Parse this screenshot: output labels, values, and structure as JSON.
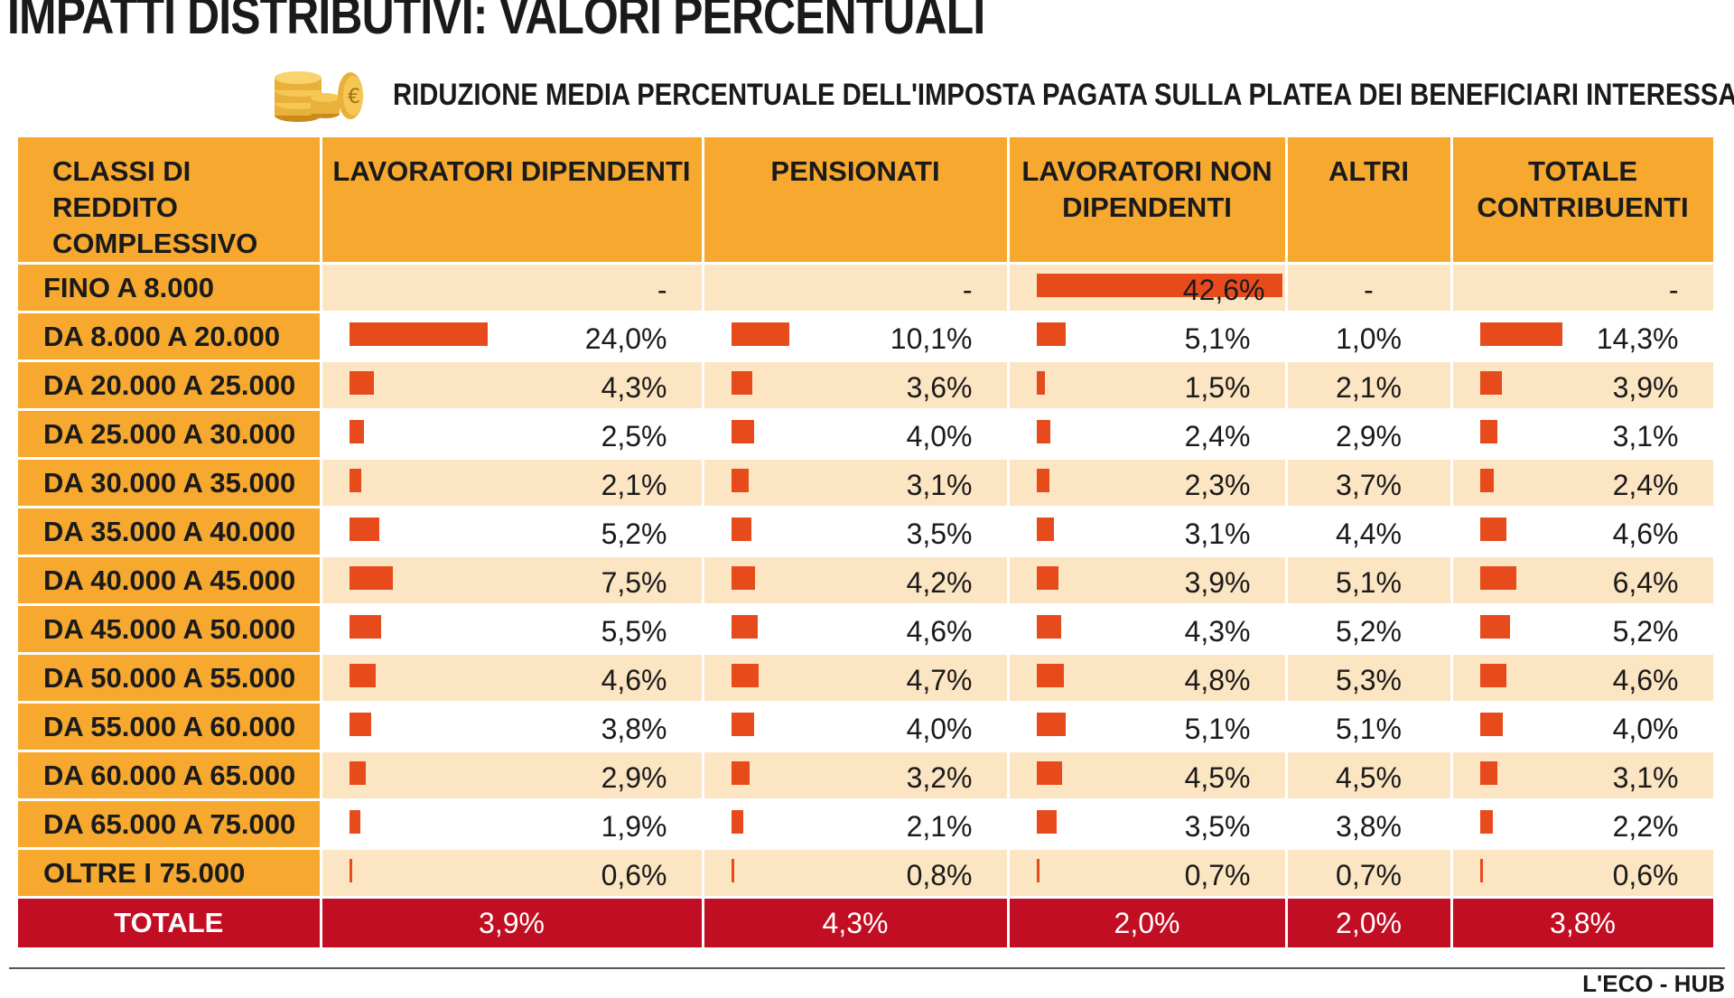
{
  "header": {
    "title": "IMPATTI DISTRIBUTIVI: VALORI PERCENTUALI",
    "subtitle": "RIDUZIONE MEDIA PERCENTUALE DELL'IMPOSTA PAGATA SULLA PLATEA DEI BENEFICIARI INTERESSATA",
    "coins_icon": "coin-stack-icon",
    "source": "L'ECO - HUB"
  },
  "colors": {
    "header_bg": "#f6a82f",
    "row_odd": "#fbe5c2",
    "row_even": "#ffffff",
    "bar": "#e84b1b",
    "total_bg": "#c20e23"
  },
  "chart_data": {
    "type": "table",
    "columns": [
      "CLASSI DI REDDITO COMPLESSIVO",
      "LAVORATORI DIPENDENTI",
      "PENSIONATI",
      "LAVORATORI NON DIPENDENTI",
      "ALTRI",
      "TOTALE CONTRIBUENTI"
    ],
    "rows": [
      {
        "label": "FINO A 8.000",
        "values": [
          "-",
          "-",
          "42,6%",
          "-",
          "-"
        ],
        "numbers": [
          null,
          null,
          42.6,
          null,
          null
        ]
      },
      {
        "label": "DA 8.000 A 20.000",
        "values": [
          "24,0%",
          "10,1%",
          "5,1%",
          "1,0%",
          "14,3%"
        ],
        "numbers": [
          24.0,
          10.1,
          5.1,
          1.0,
          14.3
        ]
      },
      {
        "label": "DA 20.000 A 25.000",
        "values": [
          "4,3%",
          "3,6%",
          "1,5%",
          "2,1%",
          "3,9%"
        ],
        "numbers": [
          4.3,
          3.6,
          1.5,
          2.1,
          3.9
        ]
      },
      {
        "label": "DA 25.000 A 30.000",
        "values": [
          "2,5%",
          "4,0%",
          "2,4%",
          "2,9%",
          "3,1%"
        ],
        "numbers": [
          2.5,
          4.0,
          2.4,
          2.9,
          3.1
        ]
      },
      {
        "label": "DA 30.000 A 35.000",
        "values": [
          "2,1%",
          "3,1%",
          "2,3%",
          "3,7%",
          "2,4%"
        ],
        "numbers": [
          2.1,
          3.1,
          2.3,
          3.7,
          2.4
        ]
      },
      {
        "label": "DA 35.000 A 40.000",
        "values": [
          "5,2%",
          "3,5%",
          "3,1%",
          "4,4%",
          "4,6%"
        ],
        "numbers": [
          5.2,
          3.5,
          3.1,
          4.4,
          4.6
        ]
      },
      {
        "label": "DA 40.000 A 45.000",
        "values": [
          "7,5%",
          "4,2%",
          "3,9%",
          "5,1%",
          "6,4%"
        ],
        "numbers": [
          7.5,
          4.2,
          3.9,
          5.1,
          6.4
        ]
      },
      {
        "label": "DA 45.000 A 50.000",
        "values": [
          "5,5%",
          "4,6%",
          "4,3%",
          "5,2%",
          "5,2%"
        ],
        "numbers": [
          5.5,
          4.6,
          4.3,
          5.2,
          5.2
        ]
      },
      {
        "label": "DA 50.000 A 55.000",
        "values": [
          "4,6%",
          "4,7%",
          "4,8%",
          "5,3%",
          "4,6%"
        ],
        "numbers": [
          4.6,
          4.7,
          4.8,
          5.3,
          4.6
        ]
      },
      {
        "label": "DA 55.000 A 60.000",
        "values": [
          "3,8%",
          "4,0%",
          "5,1%",
          "5,1%",
          "4,0%"
        ],
        "numbers": [
          3.8,
          4.0,
          5.1,
          5.1,
          4.0
        ]
      },
      {
        "label": "DA 60.000 A 65.000",
        "values": [
          "2,9%",
          "3,2%",
          "4,5%",
          "4,5%",
          "3,1%"
        ],
        "numbers": [
          2.9,
          3.2,
          4.5,
          4.5,
          3.1
        ]
      },
      {
        "label": "DA 65.000 A 75.000",
        "values": [
          "1,9%",
          "2,1%",
          "3,5%",
          "3,8%",
          "2,2%"
        ],
        "numbers": [
          1.9,
          2.1,
          3.5,
          3.8,
          2.2
        ]
      },
      {
        "label": "OLTRE I 75.000",
        "values": [
          "0,6%",
          "0,8%",
          "0,7%",
          "0,7%",
          "0,6%"
        ],
        "numbers": [
          0.6,
          0.8,
          0.7,
          0.7,
          0.6
        ]
      }
    ],
    "total": {
      "label": "TOTALE",
      "values": [
        "3,9%",
        "4,3%",
        "2,0%",
        "2,0%",
        "3,8%"
      ]
    },
    "bar_columns": [
      true,
      true,
      true,
      false,
      true
    ]
  }
}
